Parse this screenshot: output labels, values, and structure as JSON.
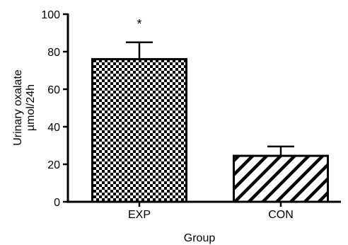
{
  "chart_data": {
    "type": "bar",
    "categories": [
      "EXP",
      "CON"
    ],
    "values": [
      76,
      24.5
    ],
    "error_upper": [
      85,
      29.5
    ],
    "significance": [
      "*",
      ""
    ],
    "bar_patterns": [
      "checkerboard",
      "diagonal-hatch"
    ],
    "title": "",
    "xlabel": "Group",
    "ylabel_lines": [
      "Urinary oxalate",
      "µmol/24h"
    ],
    "ylim": [
      0,
      100
    ],
    "yticks": [
      0,
      20,
      40,
      60,
      80,
      100
    ],
    "grid": false,
    "legend": "none",
    "colors": {
      "bar_stroke": "#000000",
      "pattern": "#000000",
      "background": "#ffffff"
    }
  }
}
